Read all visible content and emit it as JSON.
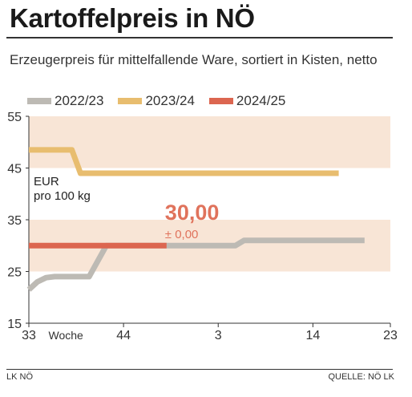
{
  "title": "Kartoffelpreis in NÖ",
  "subtitle": "Erzeugerpreis für mittelfallende Ware, sortiert in Kisten, netto",
  "footer": {
    "source_left": "LK NÖ",
    "source_right": "QUELLE: NÖ LK"
  },
  "colors": {
    "series_2022_23": "#bdbab4",
    "series_2023_24": "#e8bd6f",
    "series_2024_25": "#dc6650",
    "band": "#f8e5d6",
    "highlight_text": "#e0735c"
  },
  "chart_data": {
    "type": "line",
    "unit_label": [
      "EUR",
      "pro 100 kg"
    ],
    "ylim": [
      15,
      55
    ],
    "yticks": [
      15,
      25,
      35,
      45,
      55
    ],
    "x_domain": [
      33,
      75
    ],
    "xticks": [
      {
        "x": 33,
        "label": "33"
      },
      {
        "x": 37.3,
        "label": "Woche"
      },
      {
        "x": 44,
        "label": "44"
      },
      {
        "x": 55,
        "label": "3"
      },
      {
        "x": 66,
        "label": "14"
      },
      {
        "x": 75,
        "label": "23"
      }
    ],
    "shaded_bands": [
      [
        25,
        35
      ],
      [
        45,
        55
      ]
    ],
    "legend": [
      "2022/23",
      "2023/24",
      "2024/25"
    ],
    "series": [
      {
        "name": "2022/23",
        "color": "#bdbab4",
        "points": [
          [
            33,
            21.5
          ],
          [
            34,
            23
          ],
          [
            35,
            23.8
          ],
          [
            36,
            24
          ],
          [
            40,
            24
          ],
          [
            41,
            27
          ],
          [
            42,
            30
          ],
          [
            43,
            30
          ],
          [
            54,
            30
          ],
          [
            57,
            30
          ],
          [
            58,
            31
          ],
          [
            72,
            31
          ]
        ]
      },
      {
        "name": "2023/24",
        "color": "#e8bd6f",
        "points": [
          [
            33,
            48.5
          ],
          [
            38,
            48.5
          ],
          [
            39,
            44
          ],
          [
            69,
            44
          ]
        ]
      },
      {
        "name": "2024/25",
        "color": "#dc6650",
        "points": [
          [
            33,
            30
          ],
          [
            49,
            30
          ]
        ]
      }
    ],
    "callout": {
      "value": "30,00",
      "change": "± 0,00",
      "x": 49,
      "y": 30
    }
  }
}
